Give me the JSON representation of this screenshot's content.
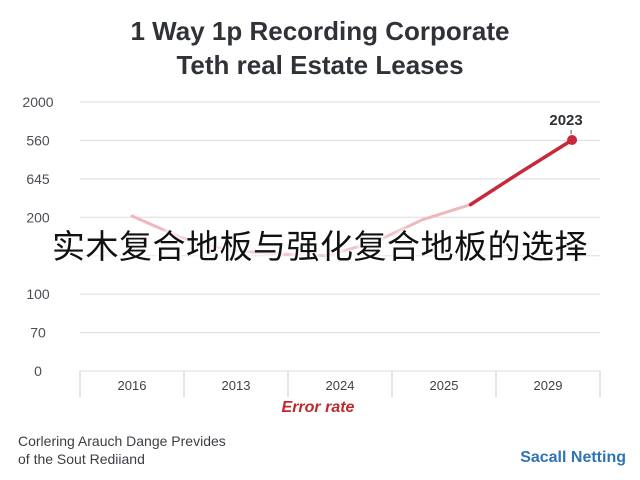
{
  "overlay_text": "实木复合地板与强化复合地板的选择",
  "footnote": {
    "line1": "Corlering Arauch Dange Prevides",
    "line2": "of the Sout Rediiand"
  },
  "brand": "Sacall Netting",
  "colors": {
    "line_main": "#c8283a",
    "line_faded": "#f0b7bd",
    "grid": "#d9dde2"
  },
  "chart_data": {
    "type": "line",
    "title": "1 Way 1p Recording Corporate Teth real Estate Leases",
    "title_lines": [
      "1 Way 1p Recording Corporate",
      "Teth real Estate Leases"
    ],
    "xlabel": "Error rate",
    "ylabel": "",
    "categories": [
      "2016",
      "2013",
      "2024",
      "2025",
      "2029"
    ],
    "y_tick_labels": [
      "2000",
      "560",
      "645",
      "200",
      "",
      "100",
      "70",
      "0"
    ],
    "annotation": {
      "label": "2023"
    },
    "series": [
      {
        "points": [
          [
            0.0,
            200
          ],
          [
            0.5,
            172
          ],
          [
            1.0,
            155
          ],
          [
            1.5,
            150
          ],
          [
            2.0,
            148
          ],
          [
            2.5,
            165
          ],
          [
            3.0,
            195
          ],
          [
            3.5,
            260
          ],
          [
            4.0,
            420
          ],
          [
            4.55,
            565
          ]
        ]
      }
    ],
    "grid": true,
    "legend": "none"
  }
}
